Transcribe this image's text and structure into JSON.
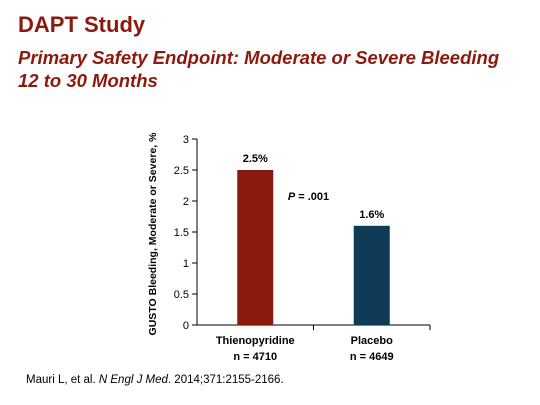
{
  "header": {
    "title": "DAPT Study",
    "subtitle": "Primary Safety Endpoint: Moderate or Severe Bleeding 12 to 30 Months"
  },
  "chart_data": {
    "type": "bar",
    "ylabel": "GUSTO Bleeding, Moderate or Severe, %",
    "ylim": [
      0,
      3
    ],
    "yticks": [
      "0",
      "0.5",
      "1",
      "1.5",
      "2",
      "2.5",
      "3"
    ],
    "categories": [
      {
        "name": "Thienopyridine",
        "n": "n = 4710"
      },
      {
        "name": "Placebo",
        "n": "n = 4649"
      }
    ],
    "values": [
      2.5,
      1.6
    ],
    "value_labels": [
      "2.5%",
      "1.6%"
    ],
    "colors": [
      "#8b1a0e",
      "#0f3b57"
    ],
    "annotation": {
      "p_italic": "P",
      "p_rest": " = .001"
    },
    "grid": false
  },
  "citation": {
    "authors": "Mauri L, et al. ",
    "journal": "N Engl J Med",
    "details": ". 2014;371:2155-2166."
  }
}
